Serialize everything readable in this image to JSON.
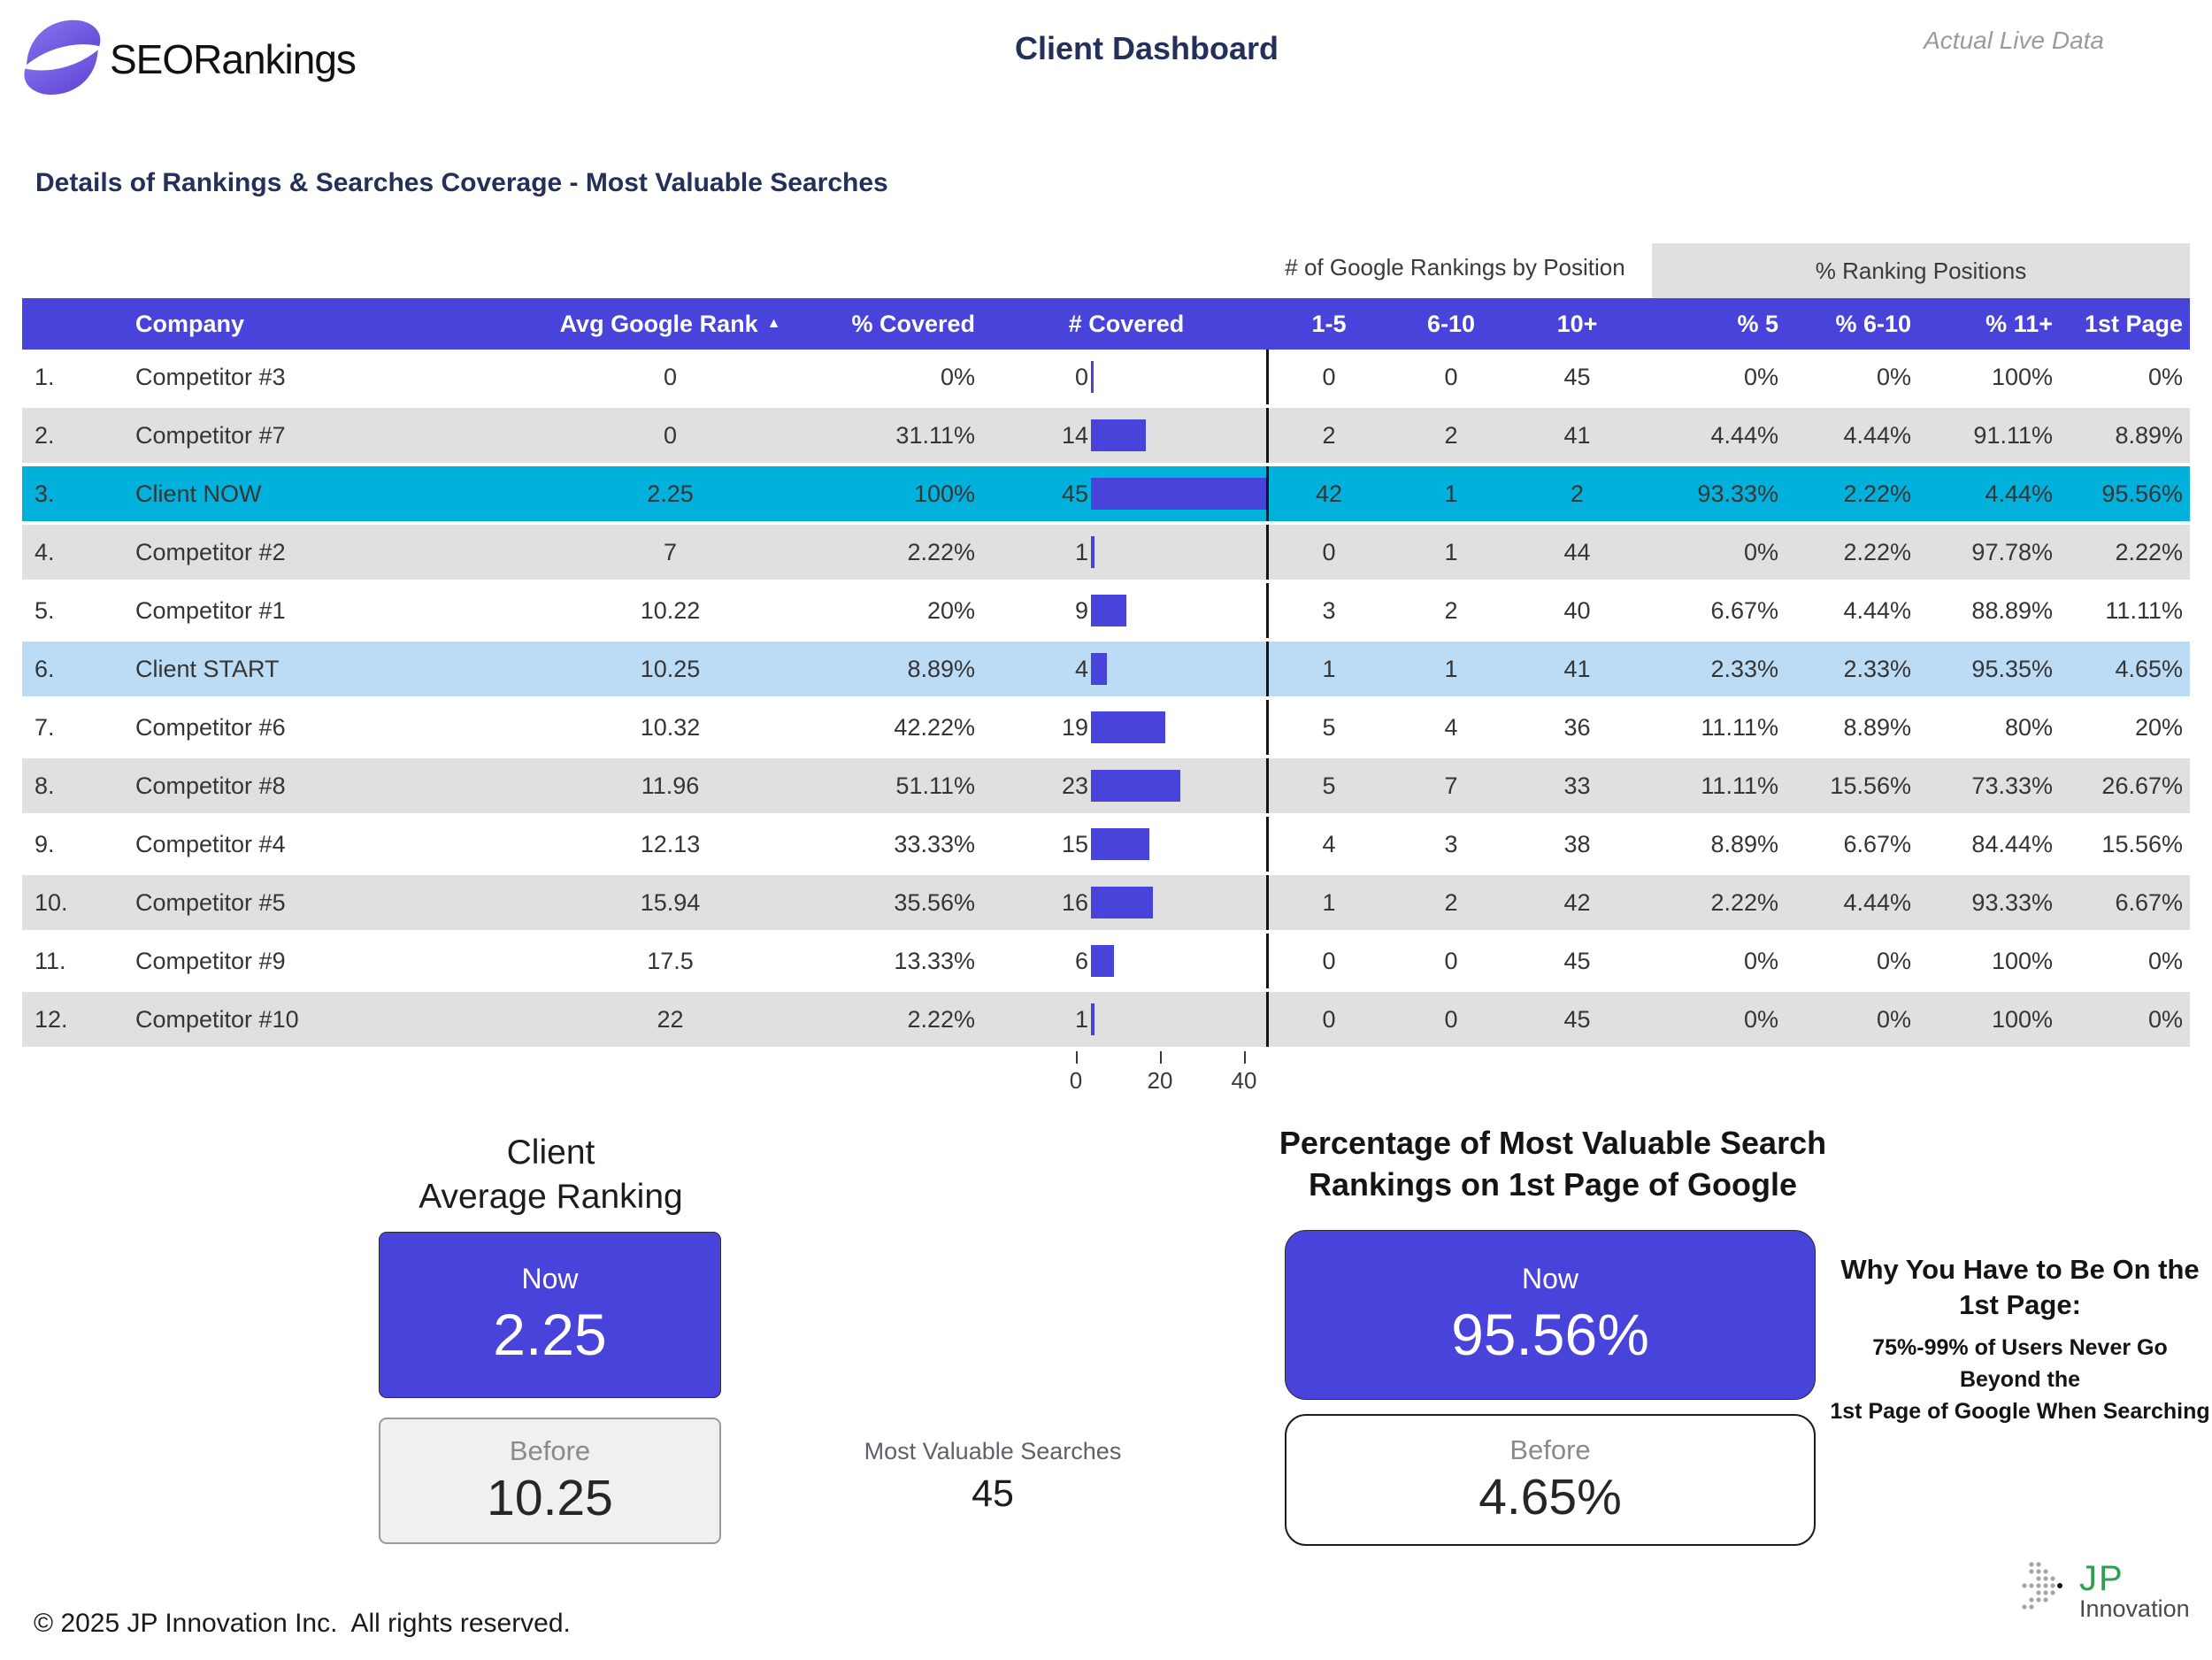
{
  "header": {
    "logo_text": "SEORankings",
    "title": "Client Dashboard",
    "live_data_label": "Actual Live Data"
  },
  "section_title": "Details of Rankings & Searches Coverage - Most Valuable Searches",
  "labels": {
    "now": "Now",
    "before": "Before"
  },
  "colors": {
    "accent_purple": "#4843db",
    "client_now_row": "#00b1dc",
    "client_start_row": "#bcdcf6",
    "row_gray": "#e0e0e0",
    "navy": "#25305a"
  },
  "chart_data": {
    "type": "table",
    "title": "Details of Rankings & Searches Coverage - Most Valuable Searches",
    "group_headers": {
      "rankings_by_position": "# of Google Rankings by Position",
      "ranking_positions": "% Ranking Positions"
    },
    "columns": {
      "company": "Company",
      "avg_rank": "Avg Google Rank",
      "sort_icon": "▲",
      "pct_covered": "% Covered",
      "num_covered": "# Covered",
      "r1_5": "1-5",
      "r6_10": "6-10",
      "r10p": "10+",
      "p5": "% 5",
      "p6_10": "% 6-10",
      "p11": "% 11+",
      "first_page": "1st Page"
    },
    "embedded_bar": {
      "column": "# Covered",
      "max": 45,
      "axis_ticks": [
        "0",
        "20",
        "40"
      ]
    },
    "rows": [
      {
        "num": "1.",
        "company": "Competitor #3",
        "avg_rank": "0",
        "pct_covered": "0%",
        "covered": "0",
        "covered_value": 0,
        "r1_5": "0",
        "r6_10": "0",
        "r10p": "45",
        "p5": "0%",
        "p6_10": "0%",
        "p11": "100%",
        "first_page": "0%",
        "highlight": ""
      },
      {
        "num": "2.",
        "company": "Competitor #7",
        "avg_rank": "0",
        "pct_covered": "31.11%",
        "covered": "14",
        "covered_value": 14,
        "r1_5": "2",
        "r6_10": "2",
        "r10p": "41",
        "p5": "4.44%",
        "p6_10": "4.44%",
        "p11": "91.11%",
        "first_page": "8.89%",
        "highlight": ""
      },
      {
        "num": "3.",
        "company": "Client NOW",
        "avg_rank": "2.25",
        "pct_covered": "100%",
        "covered": "45",
        "covered_value": 45,
        "r1_5": "42",
        "r6_10": "1",
        "r10p": "2",
        "p5": "93.33%",
        "p6_10": "2.22%",
        "p11": "4.44%",
        "first_page": "95.56%",
        "highlight": "now"
      },
      {
        "num": "4.",
        "company": "Competitor #2",
        "avg_rank": "7",
        "pct_covered": "2.22%",
        "covered": "1",
        "covered_value": 1,
        "r1_5": "0",
        "r6_10": "1",
        "r10p": "44",
        "p5": "0%",
        "p6_10": "2.22%",
        "p11": "97.78%",
        "first_page": "2.22%",
        "highlight": ""
      },
      {
        "num": "5.",
        "company": "Competitor #1",
        "avg_rank": "10.22",
        "pct_covered": "20%",
        "covered": "9",
        "covered_value": 9,
        "r1_5": "3",
        "r6_10": "2",
        "r10p": "40",
        "p5": "6.67%",
        "p6_10": "4.44%",
        "p11": "88.89%",
        "first_page": "11.11%",
        "highlight": ""
      },
      {
        "num": "6.",
        "company": "Client START",
        "avg_rank": "10.25",
        "pct_covered": "8.89%",
        "covered": "4",
        "covered_value": 4,
        "r1_5": "1",
        "r6_10": "1",
        "r10p": "41",
        "p5": "2.33%",
        "p6_10": "2.33%",
        "p11": "95.35%",
        "first_page": "4.65%",
        "highlight": "start"
      },
      {
        "num": "7.",
        "company": "Competitor #6",
        "avg_rank": "10.32",
        "pct_covered": "42.22%",
        "covered": "19",
        "covered_value": 19,
        "r1_5": "5",
        "r6_10": "4",
        "r10p": "36",
        "p5": "11.11%",
        "p6_10": "8.89%",
        "p11": "80%",
        "first_page": "20%",
        "highlight": ""
      },
      {
        "num": "8.",
        "company": "Competitor #8",
        "avg_rank": "11.96",
        "pct_covered": "51.11%",
        "covered": "23",
        "covered_value": 23,
        "r1_5": "5",
        "r6_10": "7",
        "r10p": "33",
        "p5": "11.11%",
        "p6_10": "15.56%",
        "p11": "73.33%",
        "first_page": "26.67%",
        "highlight": ""
      },
      {
        "num": "9.",
        "company": "Competitor #4",
        "avg_rank": "12.13",
        "pct_covered": "33.33%",
        "covered": "15",
        "covered_value": 15,
        "r1_5": "4",
        "r6_10": "3",
        "r10p": "38",
        "p5": "8.89%",
        "p6_10": "6.67%",
        "p11": "84.44%",
        "first_page": "15.56%",
        "highlight": ""
      },
      {
        "num": "10.",
        "company": "Competitor #5",
        "avg_rank": "15.94",
        "pct_covered": "35.56%",
        "covered": "16",
        "covered_value": 16,
        "r1_5": "1",
        "r6_10": "2",
        "r10p": "42",
        "p5": "2.22%",
        "p6_10": "4.44%",
        "p11": "93.33%",
        "first_page": "6.67%",
        "highlight": ""
      },
      {
        "num": "11.",
        "company": "Competitor #9",
        "avg_rank": "17.5",
        "pct_covered": "13.33%",
        "covered": "6",
        "covered_value": 6,
        "r1_5": "0",
        "r6_10": "0",
        "r10p": "45",
        "p5": "0%",
        "p6_10": "0%",
        "p11": "100%",
        "first_page": "0%",
        "highlight": ""
      },
      {
        "num": "12.",
        "company": "Competitor #10",
        "avg_rank": "22",
        "pct_covered": "2.22%",
        "covered": "1",
        "covered_value": 1,
        "r1_5": "0",
        "r6_10": "0",
        "r10p": "45",
        "p5": "0%",
        "p6_10": "0%",
        "p11": "100%",
        "first_page": "0%",
        "highlight": ""
      }
    ],
    "scorecards": {
      "avg_ranking": {
        "title_line1": "Client",
        "title_line2": "Average Ranking",
        "now": "2.25",
        "before": "10.25"
      },
      "first_page_pct": {
        "title_line1": "Percentage of Most Valuable Search",
        "title_line2": "Rankings on 1st Page of Google",
        "now": "95.56%",
        "before": "4.65%"
      },
      "most_valuable_searches": {
        "label": "Most Valuable Searches",
        "value": "45"
      }
    }
  },
  "why_box": {
    "title": "Why You Have to Be On the 1st Page:",
    "line1": "75%-99% of Users Never Go Beyond the",
    "line2": "1st Page of Google When Searching"
  },
  "footer": {
    "copyright": "© 2025 JP Innovation Inc.  All rights reserved."
  },
  "jp_logo": {
    "jp": "JP",
    "innovation": "Innovation"
  }
}
